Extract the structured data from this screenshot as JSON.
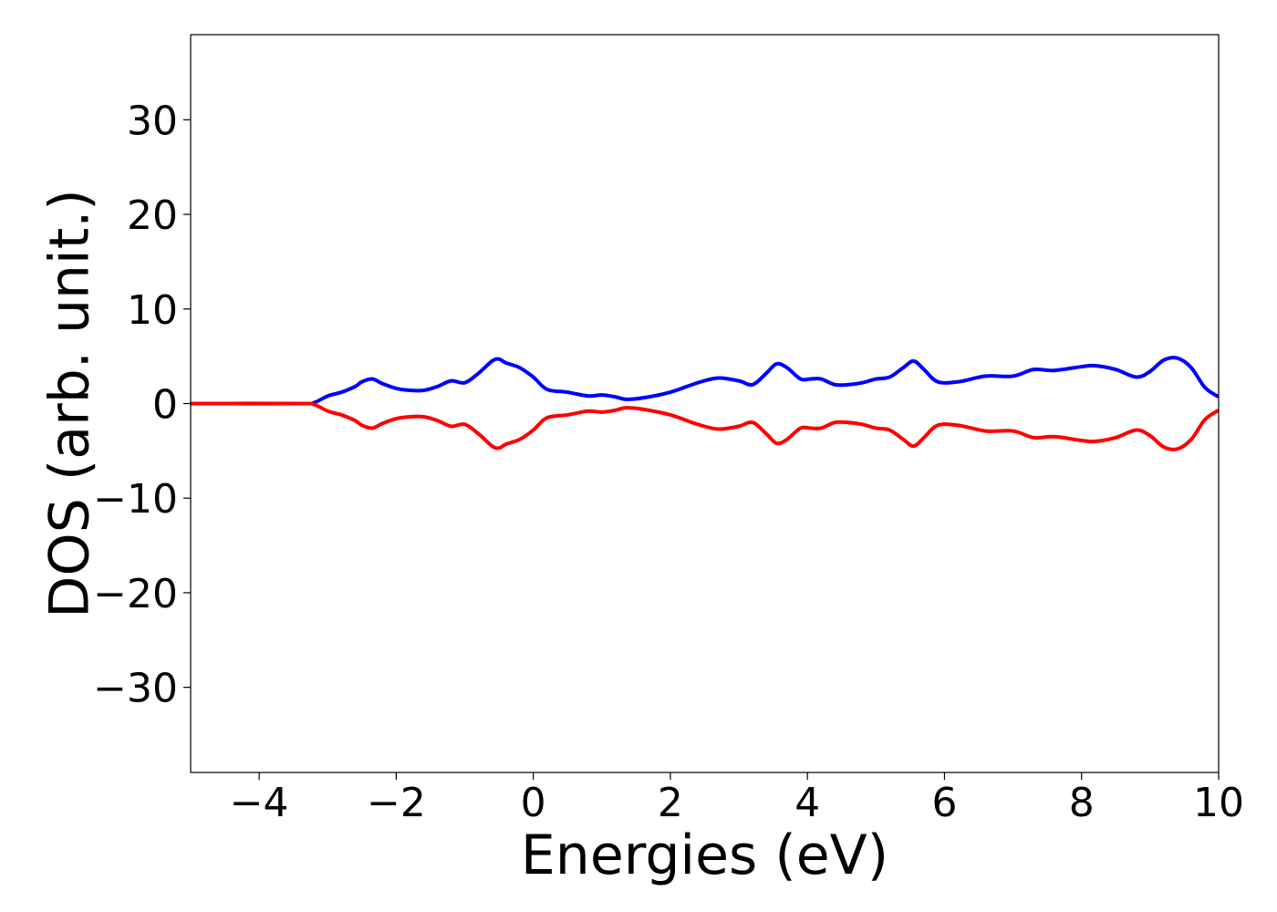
{
  "chart_data": {
    "type": "line",
    "title": "",
    "xlabel": "Energies (eV)",
    "ylabel": "DOS (arb. unit.)",
    "xlim": [
      -5,
      10
    ],
    "ylim": [
      -39,
      39
    ],
    "xticks": [
      -4,
      -2,
      0,
      2,
      4,
      6,
      8,
      10
    ],
    "xtick_labels": [
      "−4",
      "−2",
      "0",
      "2",
      "4",
      "6",
      "8",
      "10"
    ],
    "yticks": [
      -30,
      -20,
      -10,
      0,
      10,
      20,
      30
    ],
    "ytick_labels": [
      "−30",
      "−20",
      "−10",
      "0",
      "10",
      "20",
      "30"
    ],
    "grid": false,
    "legend": "none",
    "series": [
      {
        "color": "#0000ff",
        "x": [
          -5,
          -3.4,
          -3.2,
          -3.0,
          -2.8,
          -2.6,
          -2.5,
          -2.35,
          -2.2,
          -2.0,
          -1.8,
          -1.6,
          -1.4,
          -1.2,
          -1.0,
          -0.8,
          -0.6,
          -0.5,
          -0.4,
          -0.2,
          0,
          0.2,
          0.5,
          0.8,
          1.0,
          1.2,
          1.35,
          1.6,
          2.0,
          2.4,
          2.7,
          3.0,
          3.2,
          3.4,
          3.55,
          3.7,
          3.9,
          4.05,
          4.2,
          4.4,
          4.6,
          4.8,
          5.0,
          5.2,
          5.4,
          5.55,
          5.7,
          5.9,
          6.2,
          6.6,
          7.0,
          7.3,
          7.6,
          8.0,
          8.2,
          8.5,
          8.8,
          9.0,
          9.2,
          9.4,
          9.6,
          9.8,
          10.0
        ],
        "y": [
          0,
          0,
          0.1,
          0.8,
          1.2,
          1.8,
          2.3,
          2.6,
          2.1,
          1.6,
          1.4,
          1.4,
          1.8,
          2.4,
          2.2,
          3.2,
          4.5,
          4.7,
          4.3,
          3.8,
          2.8,
          1.5,
          1.2,
          0.8,
          0.9,
          0.7,
          0.45,
          0.6,
          1.2,
          2.2,
          2.7,
          2.4,
          2.0,
          3.2,
          4.2,
          3.8,
          2.6,
          2.6,
          2.6,
          2.0,
          2.0,
          2.2,
          2.6,
          2.8,
          3.8,
          4.5,
          3.6,
          2.3,
          2.3,
          2.9,
          2.9,
          3.6,
          3.5,
          3.9,
          4.0,
          3.6,
          2.8,
          3.4,
          4.6,
          4.8,
          3.8,
          1.7,
          0.7
        ]
      },
      {
        "color": "#ff0000",
        "x": [
          -5,
          -3.4,
          -3.2,
          -3.0,
          -2.8,
          -2.6,
          -2.5,
          -2.35,
          -2.2,
          -2.0,
          -1.8,
          -1.6,
          -1.4,
          -1.2,
          -1.0,
          -0.8,
          -0.6,
          -0.5,
          -0.4,
          -0.2,
          0,
          0.2,
          0.5,
          0.8,
          1.0,
          1.2,
          1.35,
          1.6,
          2.0,
          2.4,
          2.7,
          3.0,
          3.2,
          3.4,
          3.55,
          3.7,
          3.9,
          4.05,
          4.2,
          4.4,
          4.6,
          4.8,
          5.0,
          5.2,
          5.4,
          5.55,
          5.7,
          5.9,
          6.2,
          6.6,
          7.0,
          7.3,
          7.6,
          8.0,
          8.2,
          8.5,
          8.8,
          9.0,
          9.2,
          9.4,
          9.6,
          9.8,
          10.0
        ],
        "y": [
          0,
          0,
          -0.1,
          -0.8,
          -1.2,
          -1.8,
          -2.3,
          -2.6,
          -2.1,
          -1.6,
          -1.4,
          -1.4,
          -1.8,
          -2.4,
          -2.2,
          -3.2,
          -4.5,
          -4.7,
          -4.3,
          -3.8,
          -2.8,
          -1.5,
          -1.2,
          -0.8,
          -0.9,
          -0.7,
          -0.45,
          -0.6,
          -1.2,
          -2.2,
          -2.7,
          -2.4,
          -2.0,
          -3.2,
          -4.2,
          -3.8,
          -2.6,
          -2.6,
          -2.6,
          -2.0,
          -2.0,
          -2.2,
          -2.6,
          -2.8,
          -3.8,
          -4.5,
          -3.6,
          -2.3,
          -2.3,
          -2.9,
          -2.9,
          -3.6,
          -3.5,
          -3.9,
          -4.0,
          -3.6,
          -2.8,
          -3.4,
          -4.6,
          -4.8,
          -3.8,
          -1.7,
          -0.7
        ]
      }
    ]
  }
}
